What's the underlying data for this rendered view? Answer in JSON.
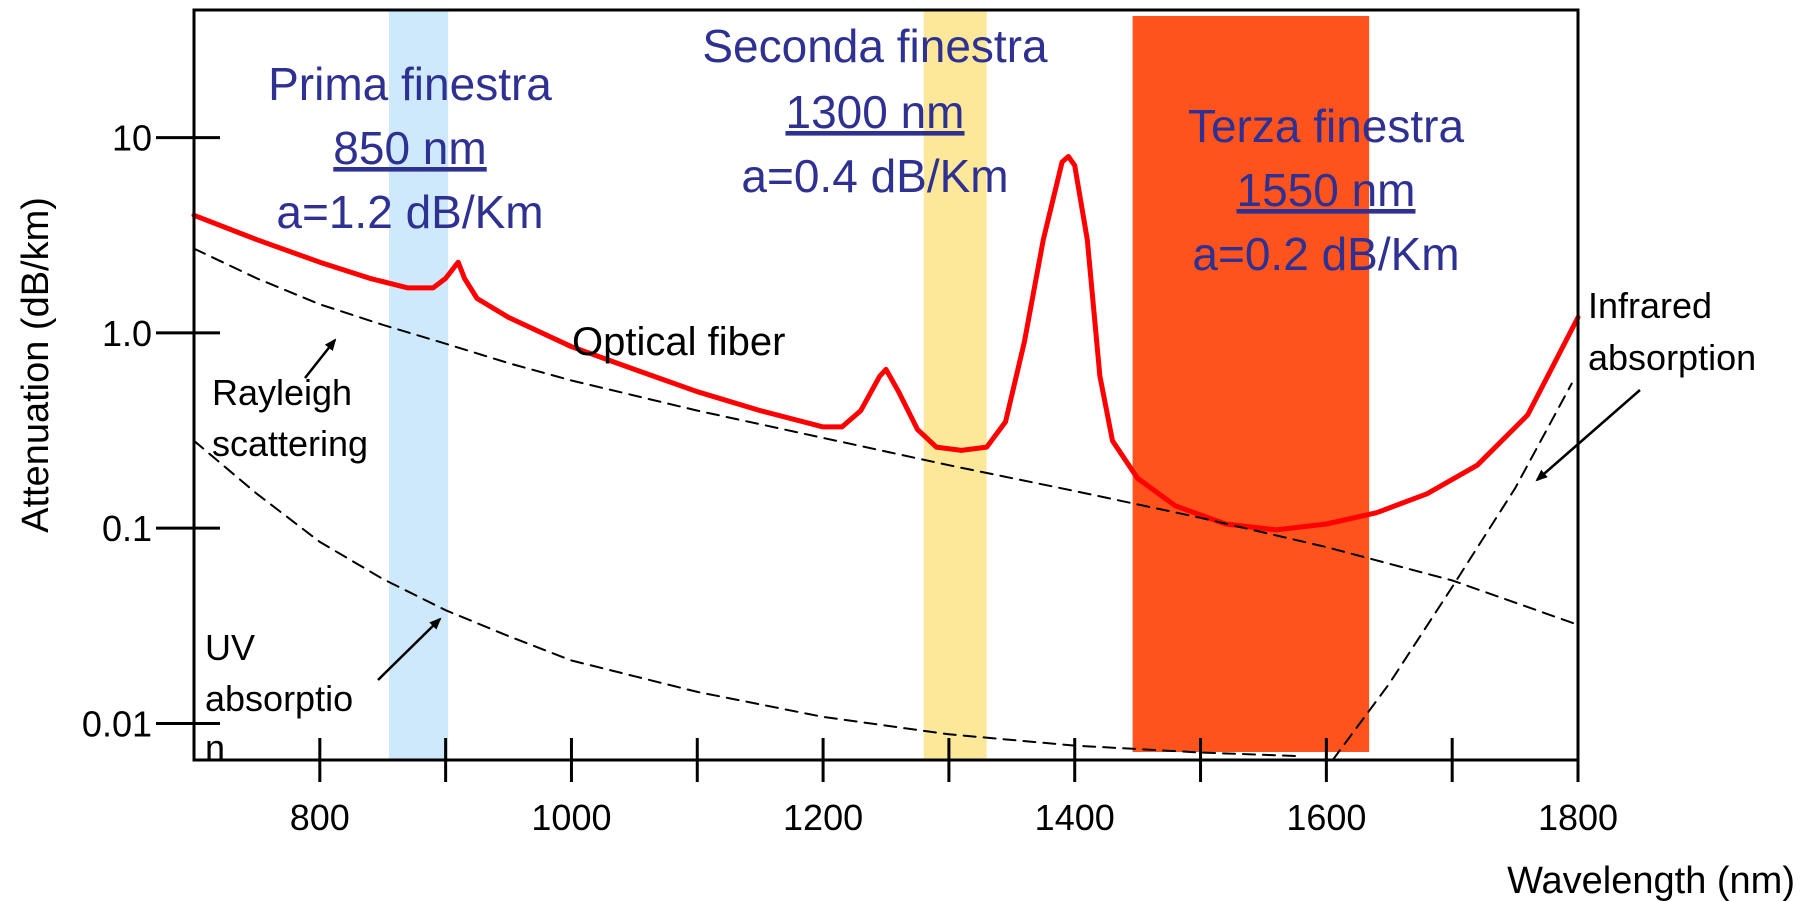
{
  "chart_data": {
    "type": "line",
    "xlabel": "Wavelength (nm)",
    "ylabel": "Attenuation (dB/km)",
    "xlim": [
      700,
      1800
    ],
    "ylim": [
      0.0065,
      45
    ],
    "y_scale": "log",
    "x_ticks": [
      800,
      1000,
      1200,
      1400,
      1600,
      1800
    ],
    "x_tick_labels": [
      "800",
      "1000",
      "1200",
      "1400",
      "1600",
      "1800"
    ],
    "x_minor_ticks": [
      900,
      1100,
      1300,
      1500,
      1700
    ],
    "y_ticks": [
      10,
      1,
      0.1,
      0.01
    ],
    "y_tick_labels": [
      "10",
      "1.0",
      "0.1",
      "0.01"
    ],
    "grid": false,
    "series": [
      {
        "name": "Optical fiber",
        "color": "#ff0000",
        "style": "solid",
        "points": [
          [
            700,
            4.0
          ],
          [
            750,
            3.0
          ],
          [
            800,
            2.3
          ],
          [
            840,
            1.9
          ],
          [
            870,
            1.7
          ],
          [
            890,
            1.7
          ],
          [
            900,
            1.9
          ],
          [
            910,
            2.3
          ],
          [
            915,
            1.9
          ],
          [
            925,
            1.5
          ],
          [
            950,
            1.2
          ],
          [
            1000,
            0.85
          ],
          [
            1050,
            0.65
          ],
          [
            1100,
            0.5
          ],
          [
            1150,
            0.4
          ],
          [
            1200,
            0.33
          ],
          [
            1215,
            0.33
          ],
          [
            1230,
            0.4
          ],
          [
            1245,
            0.6
          ],
          [
            1250,
            0.65
          ],
          [
            1260,
            0.5
          ],
          [
            1275,
            0.32
          ],
          [
            1290,
            0.26
          ],
          [
            1310,
            0.25
          ],
          [
            1330,
            0.26
          ],
          [
            1345,
            0.35
          ],
          [
            1360,
            0.9
          ],
          [
            1375,
            3.0
          ],
          [
            1390,
            7.5
          ],
          [
            1395,
            8.0
          ],
          [
            1400,
            7.2
          ],
          [
            1410,
            3.0
          ],
          [
            1420,
            0.6
          ],
          [
            1430,
            0.28
          ],
          [
            1450,
            0.18
          ],
          [
            1480,
            0.13
          ],
          [
            1520,
            0.105
          ],
          [
            1560,
            0.098
          ],
          [
            1600,
            0.105
          ],
          [
            1640,
            0.12
          ],
          [
            1680,
            0.15
          ],
          [
            1720,
            0.21
          ],
          [
            1760,
            0.38
          ],
          [
            1800,
            1.2
          ]
        ]
      },
      {
        "name": "Rayleigh scattering",
        "color": "#000000",
        "style": "dashed",
        "points": [
          [
            700,
            2.7
          ],
          [
            750,
            1.9
          ],
          [
            800,
            1.4
          ],
          [
            850,
            1.1
          ],
          [
            900,
            0.88
          ],
          [
            950,
            0.7
          ],
          [
            1000,
            0.57
          ],
          [
            1100,
            0.4
          ],
          [
            1200,
            0.29
          ],
          [
            1300,
            0.21
          ],
          [
            1400,
            0.155
          ],
          [
            1500,
            0.113
          ],
          [
            1600,
            0.08
          ],
          [
            1700,
            0.054
          ],
          [
            1800,
            0.032
          ]
        ]
      },
      {
        "name": "UV absorption",
        "color": "#000000",
        "style": "dashed",
        "points": [
          [
            700,
            0.28
          ],
          [
            750,
            0.15
          ],
          [
            800,
            0.085
          ],
          [
            850,
            0.055
          ],
          [
            900,
            0.038
          ],
          [
            950,
            0.028
          ],
          [
            1000,
            0.021
          ],
          [
            1100,
            0.0145
          ],
          [
            1200,
            0.0108
          ],
          [
            1300,
            0.0088
          ],
          [
            1400,
            0.0077
          ],
          [
            1500,
            0.0071
          ],
          [
            1580,
            0.0068
          ]
        ]
      },
      {
        "name": "Infrared absorption",
        "color": "#000000",
        "style": "dashed",
        "points": [
          [
            1605,
            0.0065
          ],
          [
            1650,
            0.016
          ],
          [
            1700,
            0.05
          ],
          [
            1750,
            0.16
          ],
          [
            1795,
            0.55
          ]
        ]
      }
    ],
    "bands": [
      {
        "x0": 855,
        "x1": 902,
        "color": "#cde9fb"
      },
      {
        "x0": 1280,
        "x1": 1330,
        "color": "#fde89a"
      },
      {
        "x0": 1446,
        "x1": 1634,
        "color": "#ff531d"
      }
    ],
    "windows": [
      {
        "title": "Prima finestra",
        "wavelength": "850 nm",
        "attenuation": "a=1.2 dB/Km"
      },
      {
        "title": "Seconda finestra",
        "wavelength": "1300 nm",
        "attenuation": "a=0.4 dB/Km"
      },
      {
        "title": "Terza finestra",
        "wavelength": "1550 nm",
        "attenuation": "a=0.2 dB/Km"
      }
    ],
    "annotations": {
      "optical_fiber": "Optical fiber",
      "rayleigh_1": "Rayleigh",
      "rayleigh_2": "scattering",
      "uv_1": "UV",
      "uv_2": "absorptio",
      "uv_3": "n",
      "ir_1": "Infrared",
      "ir_2": "absorption"
    }
  }
}
